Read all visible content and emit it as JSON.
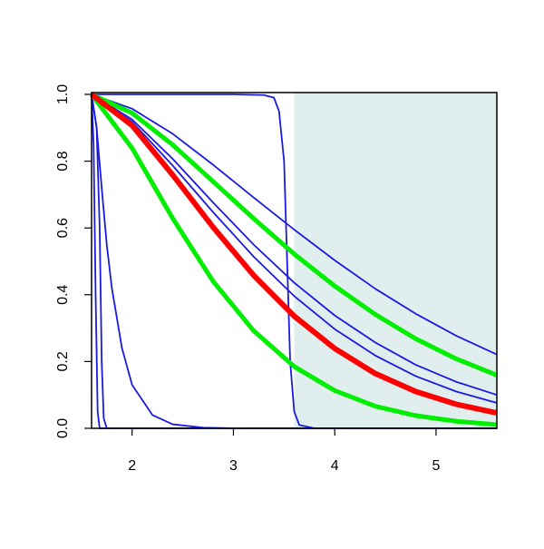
{
  "chart_data": {
    "type": "line",
    "xlim": [
      1.6,
      5.6
    ],
    "ylim": [
      0,
      1
    ],
    "xticks": [
      2,
      3,
      4,
      5
    ],
    "yticks": [
      {
        "value": 0,
        "label": "0.0"
      },
      {
        "value": 0.2,
        "label": "0.2"
      },
      {
        "value": 0.4,
        "label": "0.4"
      },
      {
        "value": 0.6,
        "label": "0.6"
      },
      {
        "value": 0.8,
        "label": "0.8"
      },
      {
        "value": 1,
        "label": "1.0"
      }
    ],
    "shade": {
      "xlim": [
        3.6,
        5.6
      ],
      "color": "#e0eeee"
    },
    "series": [
      {
        "color": "#1a1ae0",
        "width": 1.8,
        "x": [
          1.6,
          1.62,
          1.64,
          1.66,
          1.68,
          5.6
        ],
        "values": [
          1,
          0.85,
          0.4,
          0.05,
          0,
          0
        ]
      },
      {
        "color": "#1a1ae0",
        "width": 1.8,
        "x": [
          1.6,
          1.65,
          1.68,
          1.7,
          1.72,
          1.75,
          5.6
        ],
        "values": [
          1,
          0.9,
          0.6,
          0.2,
          0.03,
          0,
          0
        ]
      },
      {
        "color": "#1a1ae0",
        "width": 1.8,
        "x": [
          1.6,
          1.65,
          1.7,
          1.75,
          1.8,
          1.9,
          2.0,
          2.2,
          2.4,
          2.7,
          3.0,
          5.6
        ],
        "values": [
          1,
          0.9,
          0.72,
          0.55,
          0.42,
          0.24,
          0.13,
          0.04,
          0.012,
          0.002,
          0,
          0
        ]
      },
      {
        "color": "#1a1ae0",
        "width": 1.8,
        "x": [
          1.6,
          3.0,
          3.3,
          3.4,
          3.45,
          3.5,
          3.53,
          3.56,
          3.6,
          3.65,
          3.8,
          5.6
        ],
        "values": [
          1,
          1,
          0.998,
          0.99,
          0.95,
          0.8,
          0.5,
          0.2,
          0.05,
          0.01,
          0,
          0
        ]
      },
      {
        "color": "#1a1ae0",
        "width": 1.8,
        "x": [
          1.6,
          2.0,
          2.4,
          2.8,
          3.2,
          3.6,
          4.0,
          4.4,
          4.8,
          5.2,
          5.6
        ],
        "values": [
          1,
          0.957,
          0.882,
          0.789,
          0.691,
          0.595,
          0.503,
          0.418,
          0.343,
          0.277,
          0.221
        ]
      },
      {
        "color": "#1a1ae0",
        "width": 1.8,
        "x": [
          1.6,
          2.0,
          2.4,
          2.8,
          3.2,
          3.6,
          4.0,
          4.4,
          4.8,
          5.2,
          5.6
        ],
        "values": [
          1,
          0.925,
          0.807,
          0.676,
          0.55,
          0.436,
          0.338,
          0.257,
          0.19,
          0.139,
          0.1
        ]
      },
      {
        "color": "#1a1ae0",
        "width": 1.8,
        "x": [
          1.6,
          2.0,
          2.4,
          2.8,
          3.2,
          3.6,
          4.0,
          4.4,
          4.8,
          5.2,
          5.6
        ],
        "values": [
          1,
          0.918,
          0.787,
          0.647,
          0.514,
          0.396,
          0.297,
          0.218,
          0.156,
          0.11,
          0.076
        ]
      },
      {
        "color": "#00ee00",
        "width": 5,
        "x": [
          1.6,
          2.0,
          2.4,
          2.8,
          3.2,
          3.6,
          4.0,
          4.4,
          4.8,
          5.2,
          5.6
        ],
        "values": [
          1,
          0.944,
          0.849,
          0.739,
          0.628,
          0.522,
          0.426,
          0.341,
          0.268,
          0.208,
          0.159
        ]
      },
      {
        "color": "#00ee00",
        "width": 5,
        "x": [
          1.6,
          2.0,
          2.4,
          2.8,
          3.2,
          3.6,
          4.0,
          4.4,
          4.8,
          5.2,
          5.6
        ],
        "values": [
          1,
          0.839,
          0.629,
          0.44,
          0.292,
          0.185,
          0.113,
          0.066,
          0.038,
          0.021,
          0.011
        ]
      },
      {
        "color": "#ff0000",
        "width": 6,
        "x": [
          1.6,
          2.0,
          2.4,
          2.8,
          3.2,
          3.6,
          4.0,
          4.4,
          4.8,
          5.2,
          5.6
        ],
        "values": [
          1,
          0.907,
          0.759,
          0.602,
          0.458,
          0.336,
          0.239,
          0.164,
          0.11,
          0.072,
          0.046
        ]
      }
    ]
  }
}
